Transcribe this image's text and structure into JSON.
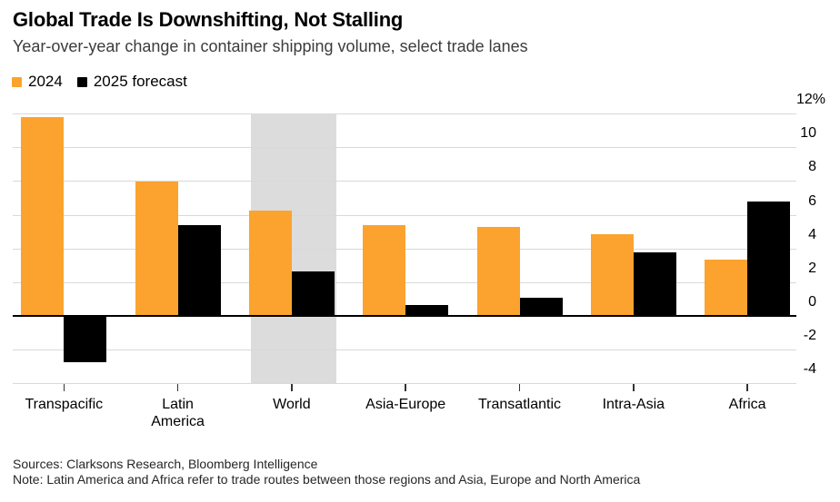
{
  "chart_data": {
    "type": "bar",
    "title": "Global Trade Is Downshifting, Not Stalling",
    "subtitle": "Year-over-year change in container shipping volume, select trade lanes",
    "categories": [
      "Transpacific",
      "Latin America",
      "World",
      "Asia-Europe",
      "Transatlantic",
      "Intra-Asia",
      "Africa"
    ],
    "tick_labels": [
      "Transpacific",
      "Latin\nAmerica",
      "World",
      "Asia-Europe",
      "Transatlantic",
      "Intra-Asia",
      "Africa"
    ],
    "series": [
      {
        "name": "2024",
        "color": "#FBA32E",
        "values": [
          11.7,
          7.9,
          6.2,
          5.3,
          5.2,
          4.8,
          3.3
        ]
      },
      {
        "name": "2025 forecast",
        "color": "#000000",
        "values": [
          -2.7,
          5.3,
          2.6,
          0.6,
          1.0,
          3.7,
          6.7
        ]
      }
    ],
    "ylim": [
      -4,
      12
    ],
    "ytick_step": 2,
    "ytick_labels": [
      "12%",
      "10",
      "8",
      "6",
      "4",
      "2",
      "0",
      "-2",
      "-4"
    ],
    "y_unit": "%",
    "baseline": 0,
    "highlight_category": "World",
    "grid": true,
    "legend_position": "top-left"
  },
  "footer": {
    "sources": "Sources: Clarksons Research, Bloomberg Intelligence",
    "note": "Note: Latin America and Africa refer to trade routes between those regions and Asia, Europe and North America"
  },
  "colors": {
    "accent_orange": "#FBA32E",
    "bar_black": "#000000",
    "highlight_band": "#DCDCDC",
    "gridline": "#D9D9D9",
    "axis_line": "#000000",
    "subtitle_text": "#3C3C3C",
    "footer_text": "#262626"
  }
}
